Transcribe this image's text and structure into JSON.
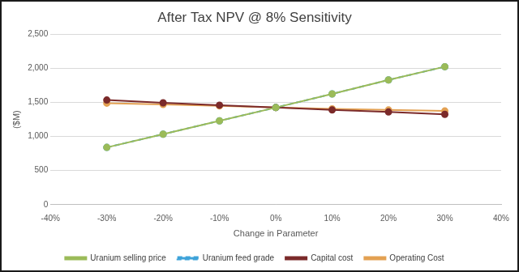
{
  "chart_data": {
    "type": "line",
    "title": "After Tax NPV @ 8% Sensitivity",
    "x_label": "Change in Parameter",
    "y_label": "($M)",
    "x": [
      -30,
      -20,
      -10,
      0,
      10,
      20,
      30
    ],
    "series": [
      {
        "name": "Uranium selling price",
        "color": "#9bbb59",
        "marker": "circle",
        "line_style": "solid",
        "values": [
          840,
          1035,
          1230,
          1425,
          1625,
          1830,
          2025
        ]
      },
      {
        "name": "Uranium feed grade",
        "color": "#3fa3d9",
        "marker": "circle",
        "line_style": "dashed",
        "values": [
          840,
          1035,
          1230,
          1425,
          1625,
          1830,
          2025
        ]
      },
      {
        "name": "Capital cost",
        "color": "#7b2a2a",
        "marker": "circle",
        "line_style": "solid",
        "values": [
          1535,
          1495,
          1460,
          1425,
          1390,
          1360,
          1325
        ]
      },
      {
        "name": "Operating Cost",
        "color": "#e3a153",
        "marker": "circle",
        "line_style": "solid",
        "values": [
          1490,
          1470,
          1450,
          1425,
          1405,
          1390,
          1375
        ]
      }
    ],
    "xlim": [
      -40,
      40
    ],
    "xticks": [
      {
        "value": -40,
        "label": "-40%"
      },
      {
        "value": -30,
        "label": "-30%"
      },
      {
        "value": -20,
        "label": "-20%"
      },
      {
        "value": -10,
        "label": "-10%"
      },
      {
        "value": 0,
        "label": "0%"
      },
      {
        "value": 10,
        "label": "10%"
      },
      {
        "value": 20,
        "label": "20%"
      },
      {
        "value": 30,
        "label": "30%"
      },
      {
        "value": 40,
        "label": "40%"
      }
    ],
    "ylim": [
      0,
      2500
    ],
    "yticks": [
      0,
      500,
      {
        "value": 1000,
        "label": "1,000"
      },
      {
        "value": 1500,
        "label": "1,500"
      },
      {
        "value": 2000,
        "label": "2,000"
      },
      {
        "value": 2500,
        "label": "2,500"
      }
    ],
    "grid": true,
    "legend": "bottom"
  }
}
